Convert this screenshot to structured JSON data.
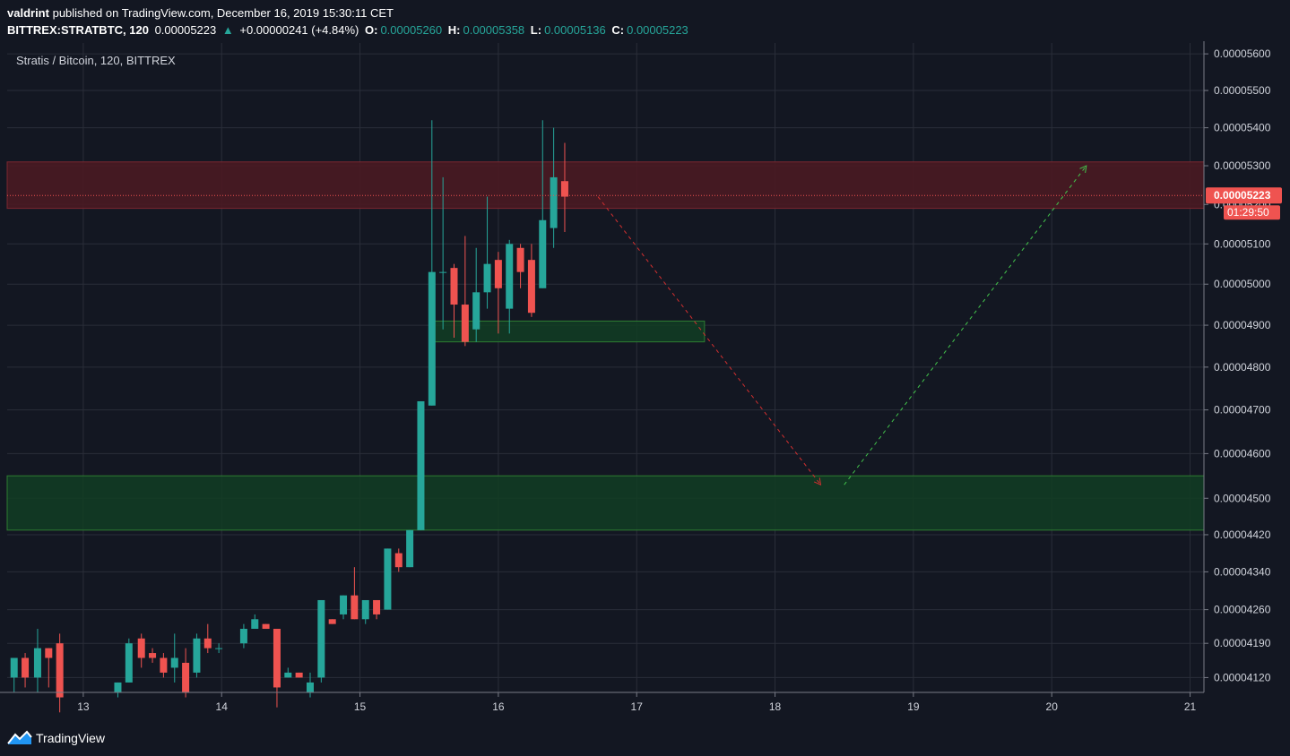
{
  "header": {
    "author": "valdrint",
    "published_text": "published on TradingView.com, December 16, 2019 15:30:11 CET",
    "symbol": "BITTREX:STRATBTC, 120",
    "last": "0.00005223",
    "change_arrow": "▲",
    "change": "+0.00000241 (+4.84%)",
    "o_label": "O:",
    "o": "0.00005260",
    "h_label": "H:",
    "h": "0.00005358",
    "l_label": "L:",
    "l": "0.00005136",
    "c_label": "C:",
    "c": "0.00005223"
  },
  "footer": {
    "brand": "TradingView",
    "logo_icon": "tradingview-logo-icon"
  },
  "colors": {
    "background": "#131722",
    "grid": "#2a2e39",
    "up": "#26a69a",
    "down": "#ef5350",
    "resistance_zone": "#4a1a22",
    "support_zone": "#123d23",
    "support_border": "#2e7d32",
    "projection_down": "#d32f2f",
    "projection_up": "#43c54c"
  },
  "chart_data": {
    "type": "candlestick",
    "title": "Stratis / Bitcoin, 120, BITTREX",
    "x_axis": {
      "ticks": [
        "13",
        "14",
        "15",
        "16",
        "17",
        "18",
        "19",
        "20",
        "21"
      ],
      "range_days": [
        12.45,
        21.1
      ]
    },
    "y_axis": {
      "ticks": [
        "0.00005600",
        "0.00005500",
        "0.00005400",
        "0.00005300",
        "0.00005200",
        "0.00005100",
        "0.00005000",
        "0.00004900",
        "0.00004800",
        "0.00004700",
        "0.00004600",
        "0.00004500",
        "0.00004420",
        "0.00004340",
        "0.00004260",
        "0.00004190",
        "0.00004120"
      ],
      "scale": "log",
      "range": [
        4.09e-05,
        5.63e-05
      ]
    },
    "price_label": "0.00005223",
    "countdown_label": "01:29:50",
    "candles": [
      {
        "t": 12.5,
        "o": 4.12e-05,
        "h": 4.16e-05,
        "l": 4.09e-05,
        "c": 4.16e-05
      },
      {
        "t": 12.58,
        "o": 4.16e-05,
        "h": 4.17e-05,
        "l": 4.1e-05,
        "c": 4.12e-05
      },
      {
        "t": 12.67,
        "o": 4.12e-05,
        "h": 4.22e-05,
        "l": 4.09e-05,
        "c": 4.18e-05
      },
      {
        "t": 12.75,
        "o": 4.18e-05,
        "h": 4.18e-05,
        "l": 4.1e-05,
        "c": 4.16e-05
      },
      {
        "t": 12.83,
        "o": 4.19e-05,
        "h": 4.21e-05,
        "l": 4.05e-05,
        "c": 4.08e-05
      },
      {
        "t": 13.25,
        "o": 4.09e-05,
        "h": 4.11e-05,
        "l": 4.08e-05,
        "c": 4.11e-05
      },
      {
        "t": 13.33,
        "o": 4.11e-05,
        "h": 4.2e-05,
        "l": 4.11e-05,
        "c": 4.19e-05
      },
      {
        "t": 13.42,
        "o": 4.2e-05,
        "h": 4.21e-05,
        "l": 4.14e-05,
        "c": 4.16e-05
      },
      {
        "t": 13.5,
        "o": 4.17e-05,
        "h": 4.18e-05,
        "l": 4.15e-05,
        "c": 4.16e-05
      },
      {
        "t": 13.58,
        "o": 4.16e-05,
        "h": 4.17e-05,
        "l": 4.12e-05,
        "c": 4.13e-05
      },
      {
        "t": 13.66,
        "o": 4.14e-05,
        "h": 4.21e-05,
        "l": 4.11e-05,
        "c": 4.16e-05
      },
      {
        "t": 13.74,
        "o": 4.15e-05,
        "h": 4.18e-05,
        "l": 4.08e-05,
        "c": 4.09e-05
      },
      {
        "t": 13.82,
        "o": 4.13e-05,
        "h": 4.21e-05,
        "l": 4.12e-05,
        "c": 4.2e-05
      },
      {
        "t": 13.9,
        "o": 4.2e-05,
        "h": 4.23e-05,
        "l": 4.17e-05,
        "c": 4.18e-05
      },
      {
        "t": 13.98,
        "o": 4.18e-05,
        "h": 4.19e-05,
        "l": 4.17e-05,
        "c": 4.18e-05
      },
      {
        "t": 14.16,
        "o": 4.19e-05,
        "h": 4.23e-05,
        "l": 4.18e-05,
        "c": 4.22e-05
      },
      {
        "t": 14.24,
        "o": 4.22e-05,
        "h": 4.25e-05,
        "l": 4.22e-05,
        "c": 4.24e-05
      },
      {
        "t": 14.32,
        "o": 4.23e-05,
        "h": 4.23e-05,
        "l": 4.22e-05,
        "c": 4.22e-05
      },
      {
        "t": 14.4,
        "o": 4.22e-05,
        "h": 4.22e-05,
        "l": 4.06e-05,
        "c": 4.1e-05
      },
      {
        "t": 14.48,
        "o": 4.12e-05,
        "h": 4.14e-05,
        "l": 4.12e-05,
        "c": 4.13e-05
      },
      {
        "t": 14.56,
        "o": 4.13e-05,
        "h": 4.13e-05,
        "l": 4.12e-05,
        "c": 4.12e-05
      },
      {
        "t": 14.64,
        "o": 4.09e-05,
        "h": 4.13e-05,
        "l": 4.08e-05,
        "c": 4.11e-05
      },
      {
        "t": 14.72,
        "o": 4.12e-05,
        "h": 4.28e-05,
        "l": 4.11e-05,
        "c": 4.28e-05
      },
      {
        "t": 14.8,
        "o": 4.24e-05,
        "h": 4.24e-05,
        "l": 4.23e-05,
        "c": 4.23e-05
      },
      {
        "t": 14.88,
        "o": 4.25e-05,
        "h": 4.29e-05,
        "l": 4.24e-05,
        "c": 4.29e-05
      },
      {
        "t": 14.96,
        "o": 4.29e-05,
        "h": 4.35e-05,
        "l": 4.24e-05,
        "c": 4.24e-05
      },
      {
        "t": 15.04,
        "o": 4.24e-05,
        "h": 4.28e-05,
        "l": 4.23e-05,
        "c": 4.28e-05
      },
      {
        "t": 15.12,
        "o": 4.28e-05,
        "h": 4.28e-05,
        "l": 4.24e-05,
        "c": 4.25e-05
      },
      {
        "t": 15.2,
        "o": 4.26e-05,
        "h": 4.39e-05,
        "l": 4.26e-05,
        "c": 4.39e-05
      },
      {
        "t": 15.28,
        "o": 4.38e-05,
        "h": 4.39e-05,
        "l": 4.34e-05,
        "c": 4.35e-05
      },
      {
        "t": 15.36,
        "o": 4.35e-05,
        "h": 4.43e-05,
        "l": 4.35e-05,
        "c": 4.43e-05
      },
      {
        "t": 15.44,
        "o": 4.43e-05,
        "h": 4.72e-05,
        "l": 4.43e-05,
        "c": 4.72e-05
      },
      {
        "t": 15.52,
        "o": 4.71e-05,
        "h": 5.42e-05,
        "l": 4.71e-05,
        "c": 5.03e-05
      },
      {
        "t": 15.6,
        "o": 5.03e-05,
        "h": 5.27e-05,
        "l": 4.89e-05,
        "c": 5.03e-05
      },
      {
        "t": 15.68,
        "o": 5.04e-05,
        "h": 5.05e-05,
        "l": 4.87e-05,
        "c": 4.95e-05
      },
      {
        "t": 15.76,
        "o": 4.95e-05,
        "h": 5.12e-05,
        "l": 4.85e-05,
        "c": 4.86e-05
      },
      {
        "t": 15.84,
        "o": 4.89e-05,
        "h": 5.09e-05,
        "l": 4.86e-05,
        "c": 4.98e-05
      },
      {
        "t": 15.92,
        "o": 4.98e-05,
        "h": 5.22e-05,
        "l": 4.94e-05,
        "c": 5.05e-05
      },
      {
        "t": 16.0,
        "o": 5.06e-05,
        "h": 5.08e-05,
        "l": 4.88e-05,
        "c": 4.99e-05
      },
      {
        "t": 16.08,
        "o": 4.94e-05,
        "h": 5.11e-05,
        "l": 4.88e-05,
        "c": 5.1e-05
      },
      {
        "t": 16.16,
        "o": 5.09e-05,
        "h": 5.1e-05,
        "l": 4.99e-05,
        "c": 5.03e-05
      },
      {
        "t": 16.24,
        "o": 5.06e-05,
        "h": 5.1e-05,
        "l": 4.92e-05,
        "c": 4.93e-05
      },
      {
        "t": 16.32,
        "o": 4.99e-05,
        "h": 5.42e-05,
        "l": 4.99e-05,
        "c": 5.16e-05
      },
      {
        "t": 16.4,
        "o": 5.14e-05,
        "h": 5.4e-05,
        "l": 5.09e-05,
        "c": 5.27e-05
      },
      {
        "t": 16.48,
        "o": 5.26e-05,
        "h": 5.36e-05,
        "l": 5.13e-05,
        "c": 5.22e-05
      }
    ],
    "zones": [
      {
        "kind": "resistance",
        "t_start": 12.45,
        "t_end": 21.1,
        "p_low": 5.19e-05,
        "p_high": 5.31e-05
      },
      {
        "kind": "support",
        "t_start": 15.52,
        "t_end": 17.49,
        "p_low": 4.86e-05,
        "p_high": 4.91e-05
      },
      {
        "kind": "support",
        "t_start": 12.45,
        "t_end": 21.1,
        "p_low": 4.43e-05,
        "p_high": 4.55e-05
      }
    ],
    "current_price": 5.223e-05,
    "projections": [
      {
        "kind": "down",
        "points": [
          [
            16.72,
            5.22e-05
          ],
          [
            18.33,
            4.53e-05
          ]
        ]
      },
      {
        "kind": "up",
        "points": [
          [
            18.5,
            4.53e-05
          ],
          [
            20.25,
            5.3e-05
          ]
        ]
      }
    ]
  }
}
